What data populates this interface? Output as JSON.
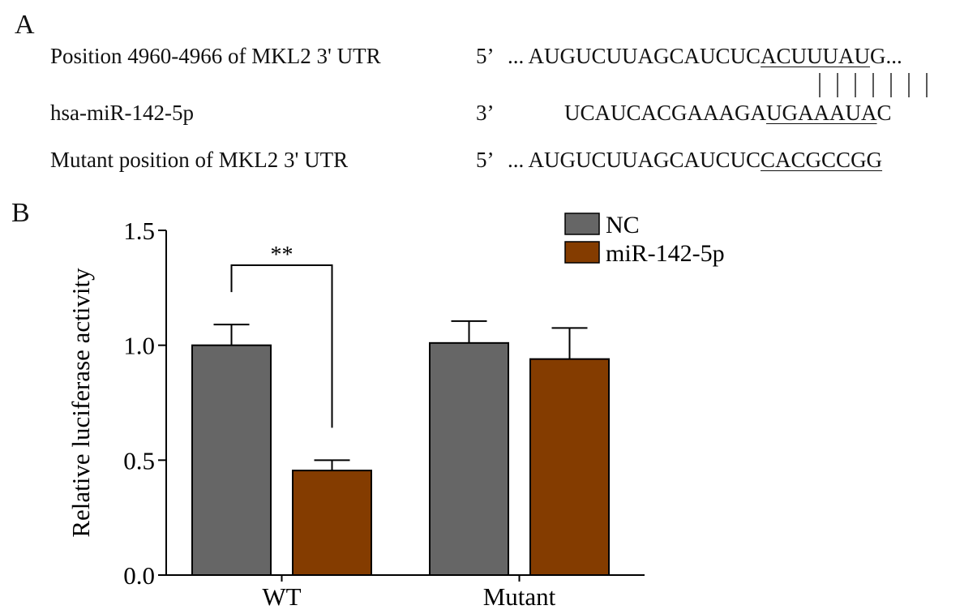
{
  "panel_a": {
    "label": "A",
    "rows": [
      {
        "name": "Position 4960-4966 of MKL2 3' UTR",
        "dir": "5’",
        "pre": "... AUGUCUUAGCAUCUC",
        "site": "ACUUUAU",
        "post": "G..."
      },
      {
        "name": "hsa-miR-142-5p",
        "dir": "3’",
        "pre": "UCAUCACGAAAGA",
        "site": "UGAAAUA",
        "post": "C"
      },
      {
        "name": "Mutant position of MKL2 3' UTR",
        "dir": "5’",
        "pre": "... AUGUCUUAGCAUCUC",
        "site": "CACGCCGG",
        "post": ""
      }
    ]
  },
  "panel_b": {
    "label": "B"
  },
  "chart_data": {
    "type": "bar",
    "categories": [
      "WT",
      "Mutant"
    ],
    "series": [
      {
        "name": "NC",
        "color": "#666666",
        "values": [
          1.0,
          1.01
        ],
        "errors": [
          0.09,
          0.095
        ]
      },
      {
        "name": "miR-142-5p",
        "color": "#843c00",
        "values": [
          0.455,
          0.94
        ],
        "errors": [
          0.045,
          0.135
        ]
      }
    ],
    "ylabel": "Relative luciferase activity",
    "ylim": [
      0,
      1.5
    ],
    "yticks": [
      0.0,
      0.5,
      1.0,
      1.5
    ],
    "ytick_labels": [
      "0.0",
      "0.5",
      "1.0",
      "1.5"
    ],
    "legend_position": "top-right",
    "annotations": [
      {
        "text": "**",
        "between": [
          "WT:NC",
          "WT:miR-142-5p"
        ]
      }
    ]
  }
}
